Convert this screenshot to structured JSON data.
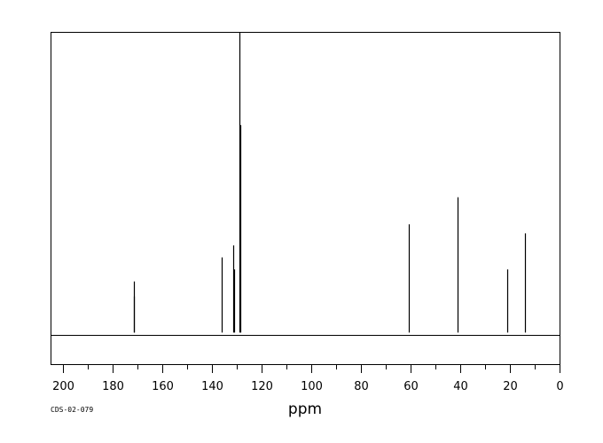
{
  "chart_data": {
    "type": "line",
    "xlabel": "ppm",
    "ylabel": "",
    "xlim": [
      205,
      0
    ],
    "xreversed": true,
    "x_ticks": [
      200,
      180,
      160,
      140,
      120,
      100,
      80,
      60,
      40,
      20,
      0
    ],
    "minor_tick_step": 10,
    "ylim": [
      -0.105,
      1.0
    ],
    "grid": false,
    "legend": "none",
    "baseline": 0,
    "line_color": "#000000",
    "peaks": [
      {
        "ppm": 171.6,
        "intensity": 0.17
      },
      {
        "ppm": 171.3,
        "intensity": 0.12
      },
      {
        "ppm": 136.2,
        "intensity": 0.25
      },
      {
        "ppm": 131.3,
        "intensity": 0.29
      },
      {
        "ppm": 130.9,
        "intensity": 0.21
      },
      {
        "ppm": 129.0,
        "intensity": 1.0
      },
      {
        "ppm": 128.6,
        "intensity": 0.69
      },
      {
        "ppm": 60.6,
        "intensity": 0.36
      },
      {
        "ppm": 41.1,
        "intensity": 0.45
      },
      {
        "ppm": 21.0,
        "intensity": 0.21
      },
      {
        "ppm": 14.1,
        "intensity": 0.33
      }
    ]
  },
  "footer": {
    "code": "CDS-02-079"
  }
}
